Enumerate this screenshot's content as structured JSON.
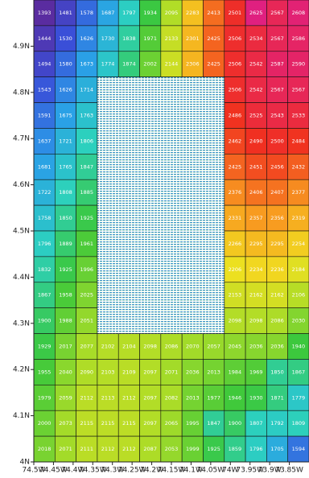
{
  "chart_data": {
    "type": "heatmap",
    "colors": [
      "#5a2ca0",
      "#3a4fd8",
      "#2a9ee8",
      "#2cd0c0",
      "#3cc83c",
      "#a8dc28",
      "#f0e020",
      "#f8a020",
      "#f03020",
      "#e02080"
    ],
    "values": [
      [
        1393,
        1481,
        1578,
        1687,
        1797,
        1934,
        2095,
        2283,
        2413,
        2501,
        2625,
        2567,
        2608
      ],
      [
        1444,
        1530,
        1626,
        1730,
        1838,
        1971,
        2133,
        2301,
        2425,
        2506,
        2534,
        2567,
        2586
      ],
      [
        1494,
        1580,
        1673,
        1774,
        1874,
        2002,
        2144,
        2306,
        2425,
        2506,
        2542,
        2587,
        2590
      ],
      [
        1543,
        1626,
        1714,
        null,
        null,
        null,
        null,
        null,
        null,
        2506,
        2542,
        2567,
        2567
      ],
      [
        1591,
        1675,
        1763,
        null,
        null,
        null,
        null,
        null,
        null,
        2486,
        2525,
        2543,
        2533
      ],
      [
        1637,
        1721,
        1806,
        null,
        null,
        null,
        null,
        null,
        null,
        2462,
        2490,
        2500,
        2484
      ],
      [
        1681,
        1765,
        1847,
        null,
        null,
        null,
        null,
        null,
        null,
        2425,
        2451,
        2456,
        2432
      ],
      [
        1722,
        1808,
        1885,
        null,
        null,
        null,
        null,
        null,
        null,
        2376,
        2406,
        2407,
        2377
      ],
      [
        1758,
        1850,
        1925,
        null,
        null,
        null,
        null,
        null,
        null,
        2331,
        2357,
        2356,
        2319
      ],
      [
        1796,
        1889,
        1961,
        null,
        null,
        null,
        null,
        null,
        null,
        2266,
        2295,
        2295,
        2254
      ],
      [
        1832,
        1925,
        1996,
        null,
        null,
        null,
        null,
        null,
        null,
        2206,
        2234,
        2236,
        2184
      ],
      [
        1867,
        1958,
        2025,
        null,
        null,
        null,
        null,
        null,
        null,
        2153,
        2162,
        2162,
        2106
      ],
      [
        1900,
        1988,
        2051,
        null,
        null,
        null,
        null,
        null,
        null,
        2098,
        2098,
        2086,
        2030
      ],
      [
        1929,
        2017,
        2077,
        2102,
        2104,
        2098,
        2086,
        2070,
        2057,
        2045,
        2036,
        2036,
        1940
      ],
      [
        1955,
        2040,
        2090,
        2103,
        2109,
        2097,
        2071,
        2036,
        2013,
        1984,
        1969,
        1850,
        1867
      ],
      [
        1979,
        2059,
        2112,
        2113,
        2112,
        2097,
        2082,
        2013,
        1977,
        1946,
        1930,
        1871,
        1779
      ],
      [
        2000,
        2073,
        2115,
        2115,
        2115,
        2097,
        2065,
        1995,
        1847,
        1900,
        1807,
        1792,
        1809
      ],
      [
        2018,
        2071,
        2111,
        2112,
        2112,
        2087,
        2053,
        1999,
        1925,
        1859,
        1796,
        1705,
        1594
      ]
    ],
    "ylim": [
      4,
      5
    ],
    "yticks": [
      {
        "value": 4,
        "label": "4N"
      },
      {
        "value": 4.1,
        "label": "4.1N"
      },
      {
        "value": 4.2,
        "label": "4.2N"
      },
      {
        "value": 4.3,
        "label": "4.3N"
      },
      {
        "value": 4.4,
        "label": "4.4N"
      },
      {
        "value": 4.5,
        "label": "4.5N"
      },
      {
        "value": 4.6,
        "label": "4.6N"
      },
      {
        "value": 4.7,
        "label": "4.7N"
      },
      {
        "value": 4.8,
        "label": "4.8N"
      },
      {
        "value": 4.9,
        "label": "4.9N"
      }
    ],
    "xlim": [
      -74.5,
      -73.8
    ],
    "xticks": [
      {
        "value": -74.5,
        "label": "74.5W"
      },
      {
        "value": -74.45,
        "label": "74.45W"
      },
      {
        "value": -74.4,
        "label": "74.4W"
      },
      {
        "value": -74.35,
        "label": "74.35W"
      },
      {
        "value": -74.3,
        "label": "74.3W"
      },
      {
        "value": -74.25,
        "label": "74.25W"
      },
      {
        "value": -74.2,
        "label": "74.2W"
      },
      {
        "value": -74.15,
        "label": "74.15W"
      },
      {
        "value": -74.1,
        "label": "74.1W"
      },
      {
        "value": -74.05,
        "label": "74.05W"
      },
      {
        "value": -74,
        "label": "74W"
      },
      {
        "value": -73.95,
        "label": "73.95W"
      },
      {
        "value": -73.9,
        "label": "73.9W"
      },
      {
        "value": -73.85,
        "label": "73.85W"
      }
    ]
  }
}
